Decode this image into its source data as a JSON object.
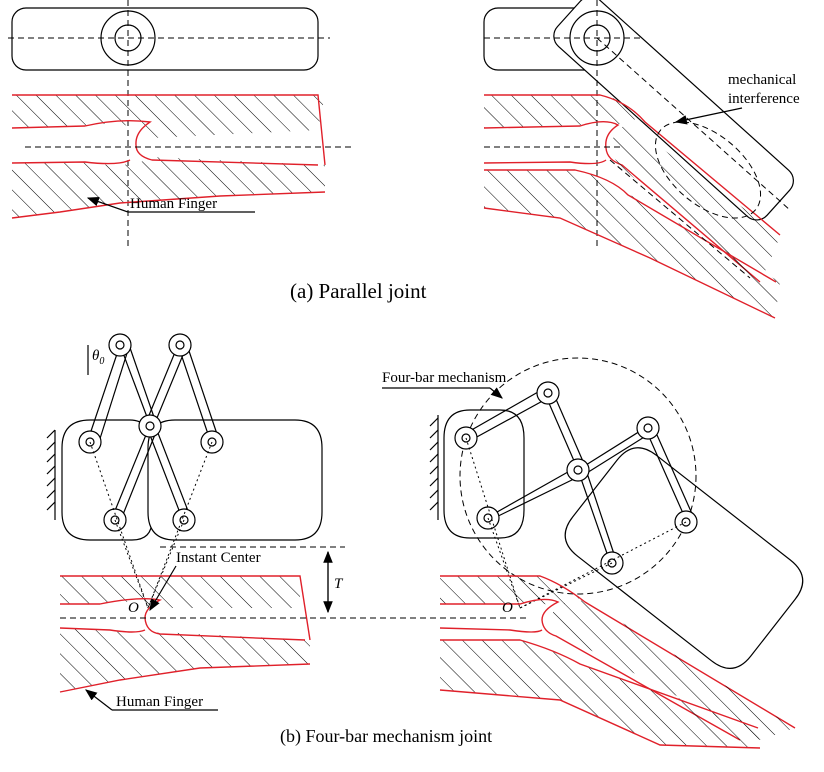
{
  "labels": {
    "mechanical_interference": [
      "mechanical",
      "interference"
    ],
    "human_finger_top": "Human Finger",
    "caption_a": "(a) Parallel joint",
    "four_bar_mechanism": "Four-bar mechanism",
    "instant_center": "Instant Center",
    "theta": "θ",
    "theta_sub": "0",
    "dimension_t": "T",
    "point_o_left": "O",
    "point_o_right": "O",
    "human_finger_bottom": "Human Finger",
    "caption_b": "(b) Four-bar mechanism joint"
  },
  "colors": {
    "line": "#000000",
    "finger_outline": "#e0202a",
    "background": "#ffffff"
  }
}
